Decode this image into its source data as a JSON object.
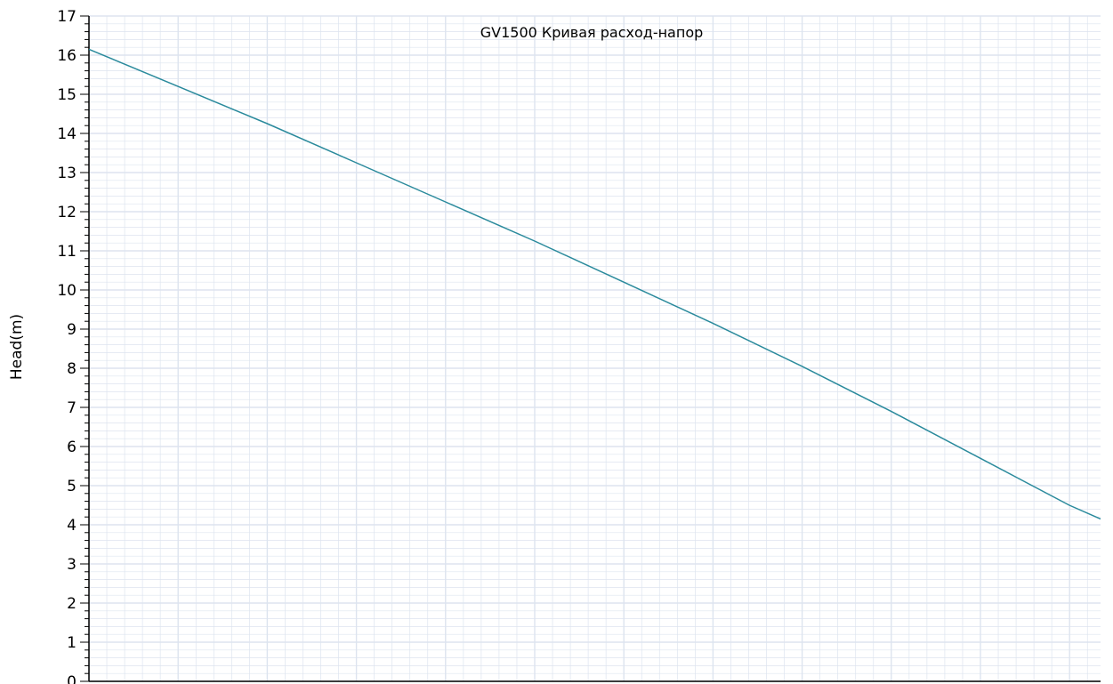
{
  "chart_data": {
    "type": "line",
    "title": "GV1500 Кривая расход-напор",
    "ylabel": "Head(m)",
    "xlabel": "",
    "ylim": [
      0,
      17
    ],
    "y_ticks": [
      0,
      1,
      2,
      3,
      4,
      5,
      6,
      7,
      8,
      9,
      10,
      11,
      12,
      13,
      14,
      15,
      16,
      17
    ],
    "x_tick_labels_visible": false,
    "grid": true,
    "legend": "none",
    "line_color": "#2a8a9c",
    "grid_color": "#dde4ef",
    "x": [
      0,
      1,
      2,
      3,
      4,
      5,
      6,
      7,
      8,
      9,
      10,
      11,
      11.35
    ],
    "series": [
      {
        "values": [
          16.15,
          15.2,
          14.25,
          13.25,
          12.25,
          11.25,
          10.2,
          9.15,
          8.05,
          6.9,
          5.7,
          4.5,
          4.15
        ]
      }
    ]
  }
}
